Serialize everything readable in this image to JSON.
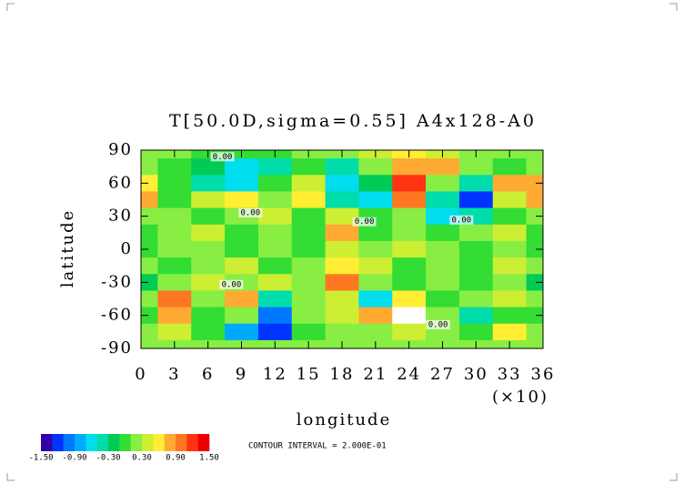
{
  "chart_data": {
    "type": "contour",
    "title": "T[50.0D,sigma=0.55] A4x128-A0",
    "y_label": "latitude",
    "x_label": "longitude",
    "x_note": "(×10)",
    "x": [
      0,
      3,
      6,
      9,
      12,
      15,
      18,
      21,
      24,
      27,
      30,
      33,
      36
    ],
    "y": [
      90,
      75,
      60,
      45,
      30,
      15,
      0,
      -15,
      -30,
      -45,
      -60,
      -75,
      -90
    ],
    "z": [
      [
        0.2,
        0.2,
        0.1,
        0.1,
        0.1,
        0.2,
        0.3,
        0.5,
        0.6,
        0.5,
        0.3,
        0.3,
        0.2
      ],
      [
        0.3,
        0.1,
        -0.1,
        -0.5,
        -0.3,
        0.1,
        -0.3,
        0.3,
        0.9,
        0.9,
        0.3,
        0,
        0.3
      ],
      [
        0.7,
        0.1,
        -0.3,
        -0.5,
        0.1,
        0.5,
        -0.5,
        -0.1,
        1.3,
        0.3,
        -0.3,
        0.9,
        0.9
      ],
      [
        0.9,
        0.1,
        0.5,
        0.7,
        0.3,
        0.7,
        -0.3,
        -0.5,
        1.1,
        -0.3,
        -1.1,
        0.5,
        0.9
      ],
      [
        0.3,
        0.3,
        0.1,
        0.3,
        0.5,
        0.1,
        0.5,
        0.1,
        0.3,
        -0.5,
        -0.3,
        0.1,
        0.3
      ],
      [
        0.1,
        0.3,
        0.5,
        0.1,
        0.3,
        0.1,
        0.9,
        0.1,
        0.3,
        0.1,
        0.3,
        0.5,
        0.1
      ],
      [
        0.1,
        0.3,
        0.3,
        0.1,
        0.3,
        0.1,
        0.5,
        0.3,
        0.5,
        0.3,
        0.1,
        0.3,
        0.1
      ],
      [
        0.3,
        0.1,
        0.3,
        0.5,
        0.1,
        0.3,
        0.7,
        0.5,
        0.1,
        0.3,
        0.1,
        0.5,
        0.3
      ],
      [
        -0.1,
        0.3,
        0.5,
        0.3,
        0.5,
        0.3,
        1.1,
        0.3,
        0.1,
        0.3,
        0.1,
        0.3,
        -0.1
      ],
      [
        0.3,
        1.1,
        0.3,
        0.9,
        -0.3,
        0.3,
        0.5,
        -0.5,
        0.7,
        0.1,
        0.3,
        0.5,
        0.3
      ],
      [
        0.1,
        0.9,
        0.1,
        0.3,
        -0.9,
        0.3,
        0.5,
        0.9,
        1.6,
        0.3,
        -0.3,
        0.1,
        0.1
      ],
      [
        0.3,
        0.5,
        0.1,
        -0.7,
        -1.1,
        0.1,
        0.3,
        0.3,
        0.5,
        0.3,
        0.1,
        0.7,
        0.3
      ],
      [
        0.3,
        0.3,
        0.3,
        0.3,
        0.3,
        0.3,
        0.3,
        0.3,
        0.3,
        0.3,
        0.3,
        0.3,
        0.3
      ]
    ],
    "xlim": [
      0,
      36
    ],
    "ylim": [
      -90,
      90
    ],
    "xticks": [
      0,
      3,
      6,
      9,
      12,
      15,
      18,
      21,
      24,
      27,
      30,
      33,
      36
    ],
    "yticks": [
      90,
      60,
      30,
      0,
      -30,
      -60,
      -90
    ],
    "contour_labels": [
      {
        "label": "0.00",
        "lon": 7.3,
        "lat": 84
      },
      {
        "label": "0.00",
        "lon": 9.8,
        "lat": 33
      },
      {
        "label": "0.00",
        "lon": 20,
        "lat": 25
      },
      {
        "label": "0.00",
        "lon": 28.7,
        "lat": 26.6
      },
      {
        "label": "0.00",
        "lon": 8.1,
        "lat": -32
      },
      {
        "label": "0.00",
        "lon": 26.6,
        "lat": -68.5
      }
    ],
    "colorbar": {
      "levels": [
        -1.5,
        -1.3,
        -1.1,
        -0.9,
        -0.7,
        -0.5,
        -0.3,
        -0.1,
        0.1,
        0.3,
        0.5,
        0.7,
        0.9,
        1.1,
        1.3,
        1.5
      ],
      "colors": [
        "#3300aa",
        "#0033ff",
        "#0077ff",
        "#00aaff",
        "#00ddee",
        "#00ddaa",
        "#00cc55",
        "#33dd33",
        "#88ee44",
        "#ccee33",
        "#ffee33",
        "#ffaa33",
        "#ff7722",
        "#ff3311",
        "#ee0000"
      ],
      "ticks": [
        {
          "value": -1.5,
          "label": "-1.50"
        },
        {
          "value": -0.9,
          "label": "-0.90"
        },
        {
          "value": -0.3,
          "label": "-0.30"
        },
        {
          "value": 0.3,
          "label": "0.30"
        },
        {
          "value": 0.9,
          "label": "0.90"
        },
        {
          "value": 1.5,
          "label": "1.50"
        }
      ]
    },
    "contour_interval_label": "CONTOUR INTERVAL = 2.000E-01"
  }
}
